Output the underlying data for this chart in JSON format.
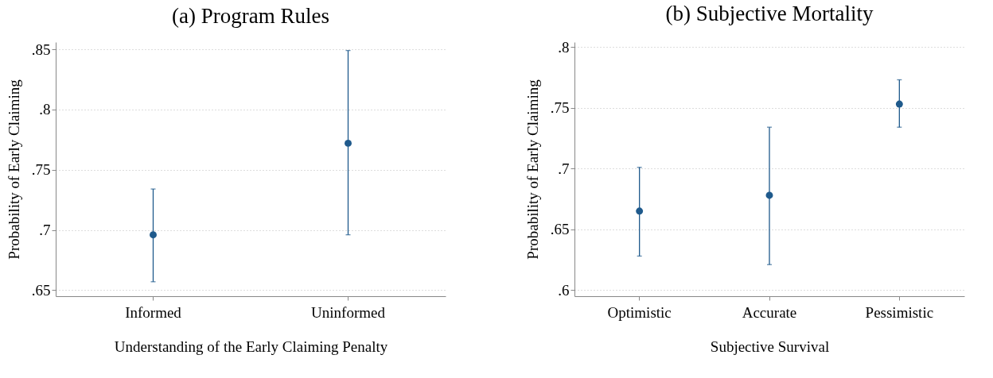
{
  "chart_data": [
    {
      "type": "scatter",
      "title": "(a) Program Rules",
      "xlabel": "Understanding of the Early Claiming Penalty",
      "ylabel": "Probability of Early Claiming",
      "categories": [
        "Informed",
        "Uninformed"
      ],
      "values": [
        0.696,
        0.772
      ],
      "errors": [
        [
          0.657,
          0.734
        ],
        [
          0.696,
          0.849
        ]
      ],
      "color": "#1f5a8c",
      "marker": "circle",
      "ylim": [
        0.645,
        0.856
      ],
      "yticks": [
        {
          "value": 0.65,
          "label": ".65"
        },
        {
          "value": 0.7,
          "label": ".7"
        },
        {
          "value": 0.75,
          "label": ".75"
        },
        {
          "value": 0.8,
          "label": ".8"
        },
        {
          "value": 0.85,
          "label": ".85"
        }
      ],
      "grid": "y"
    },
    {
      "type": "scatter",
      "title": "(b) Subjective Mortality",
      "xlabel": "Subjective Survival",
      "ylabel": "Probability of Early Claiming",
      "categories": [
        "Optimistic",
        "Accurate",
        "Pessimistic"
      ],
      "values": [
        0.665,
        0.678,
        0.753
      ],
      "errors": [
        [
          0.628,
          0.701
        ],
        [
          0.621,
          0.734
        ],
        [
          0.734,
          0.773
        ]
      ],
      "color": "#1f5a8c",
      "marker": "circle",
      "ylim": [
        0.595,
        0.804
      ],
      "yticks": [
        {
          "value": 0.6,
          "label": ".6"
        },
        {
          "value": 0.65,
          "label": ".65"
        },
        {
          "value": 0.7,
          "label": ".7"
        },
        {
          "value": 0.75,
          "label": ".75"
        },
        {
          "value": 0.8,
          "label": ".8"
        }
      ],
      "grid": "y"
    }
  ]
}
